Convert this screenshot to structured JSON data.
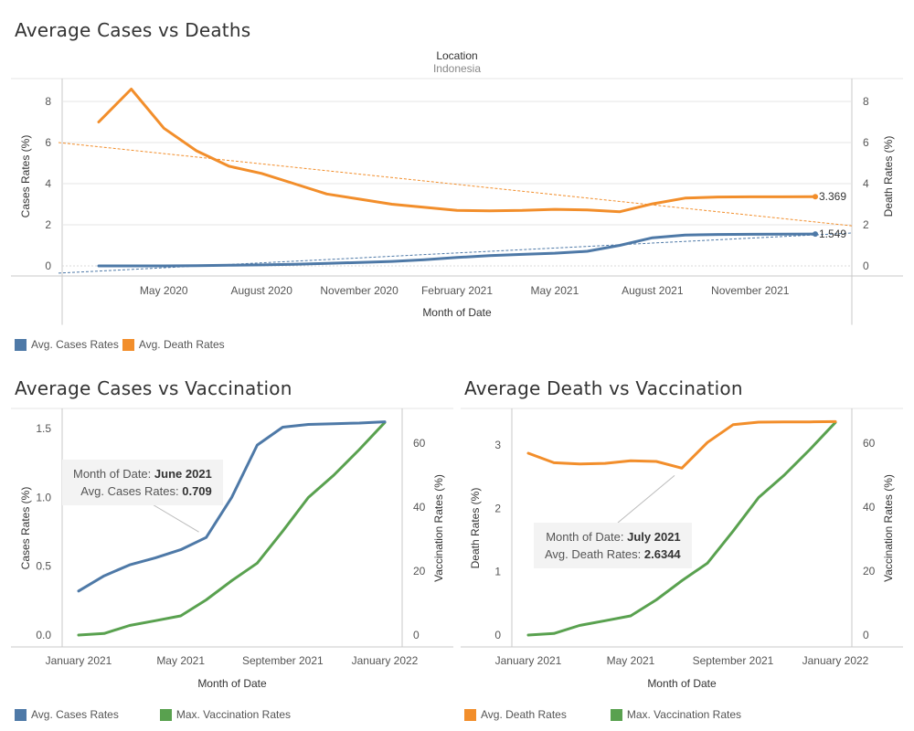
{
  "colors": {
    "cases": "#4e79a7",
    "deaths": "#f28e2b",
    "vacc": "#59a14f",
    "grid": "#e4e4e4",
    "axis": "#c8c8c8"
  },
  "chart_data": [
    {
      "id": "top",
      "type": "line",
      "title": "Average Cases vs Deaths",
      "header_label": "Location",
      "header_value": "Indonesia",
      "xlabel": "Month of Date",
      "ylabel_left": "Cases Rates (%)",
      "ylabel_right": "Death Rates (%)",
      "x_ticks": [
        "May 2020",
        "August 2020",
        "November 2020",
        "February 2021",
        "May 2021",
        "August 2021",
        "November 2021"
      ],
      "x_tick_index": [
        2,
        5,
        8,
        11,
        14,
        17,
        20
      ],
      "ylim": [
        0,
        9
      ],
      "y_ticks": [
        0,
        2,
        4,
        6,
        8
      ],
      "x": [
        "Mar 2020",
        "Apr 2020",
        "May 2020",
        "Jun 2020",
        "Jul 2020",
        "Aug 2020",
        "Sep 2020",
        "Oct 2020",
        "Nov 2020",
        "Dec 2020",
        "Jan 2021",
        "Feb 2021",
        "Mar 2021",
        "Apr 2021",
        "May 2021",
        "Jun 2021",
        "Jul 2021",
        "Aug 2021",
        "Sep 2021",
        "Oct 2021",
        "Nov 2021",
        "Dec 2021",
        "Jan 2022"
      ],
      "series": [
        {
          "name": "Avg. Cases Rates",
          "color": "#4e79a7",
          "axis": "left",
          "values": [
            0.0,
            0.0,
            0.0,
            0.01,
            0.03,
            0.05,
            0.08,
            0.12,
            0.17,
            0.22,
            0.3,
            0.41,
            0.5,
            0.56,
            0.62,
            0.709,
            1.0,
            1.37,
            1.5,
            1.53,
            1.54,
            1.545,
            1.549
          ],
          "end_label": "1.549",
          "trend": [
            -0.35,
            1.6
          ]
        },
        {
          "name": "Avg. Death Rates",
          "color": "#f28e2b",
          "axis": "right",
          "values": [
            7.0,
            8.6,
            6.7,
            5.6,
            4.85,
            4.5,
            4.0,
            3.5,
            3.25,
            3.0,
            2.85,
            2.7,
            2.68,
            2.7,
            2.75,
            2.72,
            2.6344,
            3.02,
            3.3,
            3.35,
            3.36,
            3.36,
            3.369
          ],
          "end_label": "3.369",
          "trend": [
            6.0,
            1.95
          ]
        }
      ],
      "legend": [
        "Avg. Cases Rates",
        "Avg. Death Rates"
      ]
    },
    {
      "id": "bl",
      "type": "line",
      "title": "Average Cases vs Vaccination",
      "xlabel": "Month of Date",
      "ylabel_left": "Cases Rates (%)",
      "ylabel_right": "Vaccination Rates (%)",
      "x_ticks": [
        "January 2021",
        "May 2021",
        "September 2021",
        "January 2022"
      ],
      "x_tick_index": [
        0,
        4,
        8,
        12
      ],
      "ylim_left": [
        0,
        1.6
      ],
      "y_ticks_left": [
        "0.0",
        "0.5",
        "1.0",
        "1.5"
      ],
      "ylim_right": [
        0,
        70
      ],
      "y_ticks_right": [
        0,
        20,
        40,
        60
      ],
      "x": [
        "Jan 2021",
        "Feb 2021",
        "Mar 2021",
        "Apr 2021",
        "May 2021",
        "Jun 2021",
        "Jul 2021",
        "Aug 2021",
        "Sep 2021",
        "Oct 2021",
        "Nov 2021",
        "Dec 2021",
        "Jan 2022"
      ],
      "series": [
        {
          "name": "Avg. Cases Rates",
          "color": "#4e79a7",
          "axis": "left",
          "values": [
            0.32,
            0.43,
            0.51,
            0.56,
            0.62,
            0.709,
            1.0,
            1.38,
            1.51,
            1.53,
            1.535,
            1.54,
            1.549
          ]
        },
        {
          "name": "Max. Vaccination Rates",
          "color": "#59a14f",
          "axis": "right",
          "values": [
            0,
            0.5,
            3,
            4.5,
            6,
            11,
            17,
            22.5,
            32.5,
            43,
            50,
            58,
            66.5
          ]
        }
      ],
      "tooltip": {
        "k1": "Month of Date:",
        "v1": "June 2021",
        "k2": "Avg. Cases Rates:",
        "v2": "0.709"
      },
      "legend": [
        "Avg. Cases Rates",
        "Max. Vaccination Rates"
      ]
    },
    {
      "id": "br",
      "type": "line",
      "title": "Average Death vs Vaccination",
      "xlabel": "Month of Date",
      "ylabel_left": "Death Rates (%)",
      "ylabel_right": "Vaccination Rates (%)",
      "x_ticks": [
        "January 2021",
        "May 2021",
        "September 2021",
        "January 2022"
      ],
      "x_tick_index": [
        0,
        4,
        8,
        12
      ],
      "ylim_left": [
        0,
        3.5
      ],
      "y_ticks_left": [
        "0",
        "1",
        "2",
        "3"
      ],
      "ylim_right": [
        0,
        70
      ],
      "y_ticks_right": [
        0,
        20,
        40,
        60
      ],
      "x": [
        "Jan 2021",
        "Feb 2021",
        "Mar 2021",
        "Apr 2021",
        "May 2021",
        "Jun 2021",
        "Jul 2021",
        "Aug 2021",
        "Sep 2021",
        "Oct 2021",
        "Nov 2021",
        "Dec 2021",
        "Jan 2022"
      ],
      "series": [
        {
          "name": "Avg. Death Rates",
          "color": "#f28e2b",
          "axis": "left",
          "values": [
            2.87,
            2.72,
            2.7,
            2.71,
            2.75,
            2.74,
            2.6344,
            3.04,
            3.32,
            3.36,
            3.365,
            3.365,
            3.369
          ]
        },
        {
          "name": "Max. Vaccination Rates",
          "color": "#59a14f",
          "axis": "right",
          "values": [
            0,
            0.5,
            3,
            4.5,
            6,
            11,
            17,
            22.5,
            32.5,
            43,
            50,
            58,
            66.5
          ]
        }
      ],
      "tooltip": {
        "k1": "Month of Date:",
        "v1": "July 2021",
        "k2": "Avg. Death Rates:",
        "v2": "2.6344"
      },
      "legend": [
        "Avg. Death Rates",
        "Max. Vaccination Rates"
      ]
    }
  ]
}
